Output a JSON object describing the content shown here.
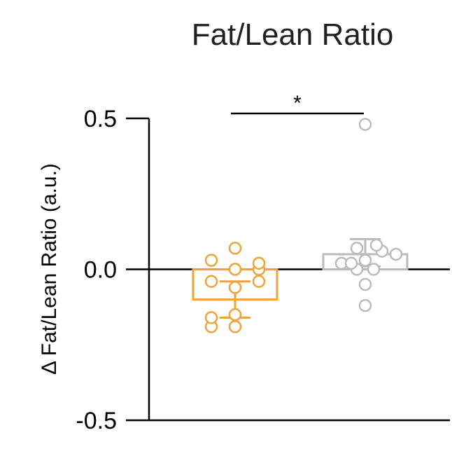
{
  "chart_data": {
    "type": "bar",
    "title": "Fat/Lean Ratio",
    "ylabel": "Δ Fat/Lean Ratio (a.u.)",
    "xlabel": "",
    "ylim": [
      -0.5,
      0.5
    ],
    "yticks": [
      {
        "value": 0.5,
        "label": "0.5"
      },
      {
        "value": 0.0,
        "label": "0.0"
      },
      {
        "value": -0.5,
        "label": "-0.5"
      }
    ],
    "grid": false,
    "series": [
      {
        "color": "#f0a33a",
        "mean": -0.1,
        "error_low": -0.16,
        "error_high": -0.04,
        "points": [
          -0.19,
          -0.19,
          -0.16,
          -0.15,
          -0.06,
          -0.04,
          -0.04,
          0.0,
          0.0,
          0.02,
          0.03,
          0.07
        ]
      },
      {
        "color": "#bbbbbb",
        "mean": 0.05,
        "error_low": 0.01,
        "error_high": 0.1,
        "points": [
          -0.12,
          -0.05,
          0.0,
          0.0,
          0.02,
          0.02,
          0.03,
          0.05,
          0.06,
          0.07,
          0.08,
          0.48
        ]
      }
    ],
    "annotations": [
      {
        "text": "*",
        "between": [
          0,
          1
        ]
      }
    ]
  }
}
